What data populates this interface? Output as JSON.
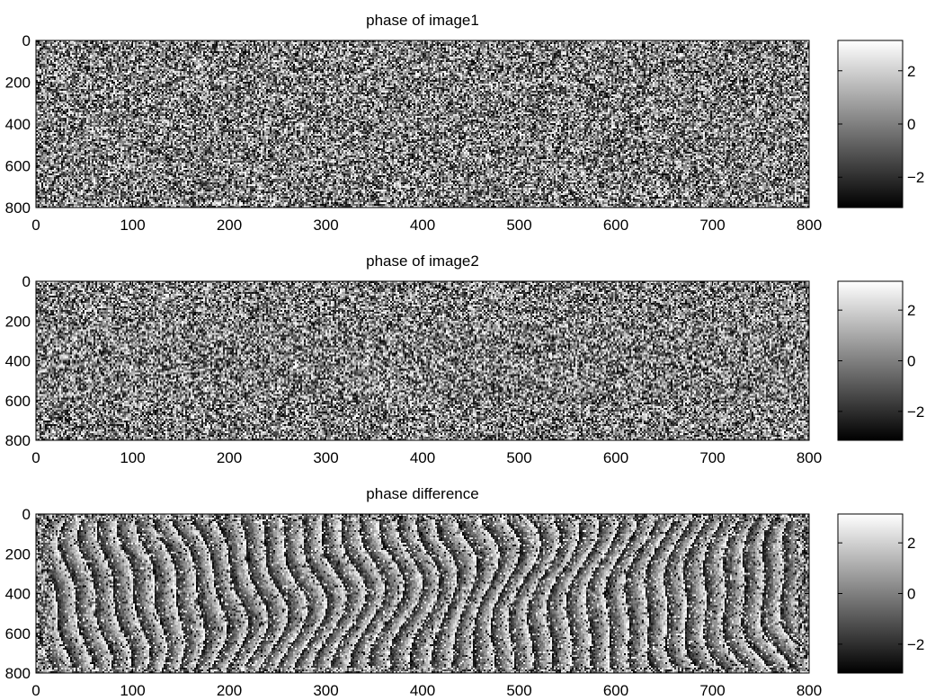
{
  "chart_data": [
    {
      "type": "heatmap",
      "title": "phase of image1",
      "pattern": "noise",
      "colormap": "gray",
      "xlim": [
        0,
        800
      ],
      "ylim": [
        0,
        800
      ],
      "y_reversed": true,
      "xticks": [
        0,
        100,
        200,
        300,
        400,
        500,
        600,
        700,
        800
      ],
      "yticks": [
        0,
        200,
        400,
        600,
        800
      ],
      "xticklabels": [
        "0",
        "100",
        "200",
        "300",
        "400",
        "500",
        "600",
        "700",
        "800"
      ],
      "yticklabels": [
        "0",
        "200",
        "400",
        "600",
        "800"
      ],
      "colorbar": {
        "range": [
          -3.14,
          3.14
        ],
        "ticks": [
          2,
          0,
          -2
        ],
        "ticklabels": [
          "2",
          "0",
          "−2"
        ]
      }
    },
    {
      "type": "heatmap",
      "title": "phase of image2",
      "pattern": "noise",
      "colormap": "gray",
      "xlim": [
        0,
        800
      ],
      "ylim": [
        0,
        800
      ],
      "y_reversed": true,
      "xticks": [
        0,
        100,
        200,
        300,
        400,
        500,
        600,
        700,
        800
      ],
      "yticks": [
        0,
        200,
        400,
        600,
        800
      ],
      "xticklabels": [
        "0",
        "100",
        "200",
        "300",
        "400",
        "500",
        "600",
        "700",
        "800"
      ],
      "yticklabels": [
        "0",
        "200",
        "400",
        "600",
        "800"
      ],
      "colorbar": {
        "range": [
          -3.14,
          3.14
        ],
        "ticks": [
          2,
          0,
          -2
        ],
        "ticklabels": [
          "2",
          "0",
          "−2"
        ]
      }
    },
    {
      "type": "heatmap",
      "title": "phase difference",
      "pattern": "fringes",
      "colormap": "gray",
      "xlim": [
        0,
        800
      ],
      "ylim": [
        0,
        800
      ],
      "y_reversed": true,
      "xticks": [
        0,
        100,
        200,
        300,
        400,
        500,
        600,
        700,
        800
      ],
      "yticks": [
        0,
        200,
        400,
        600,
        800
      ],
      "xticklabels": [
        "0",
        "100",
        "200",
        "300",
        "400",
        "500",
        "600",
        "700",
        "800"
      ],
      "yticklabels": [
        "0",
        "200",
        "400",
        "600",
        "800"
      ],
      "colorbar": {
        "range": [
          -3.14,
          3.14
        ],
        "ticks": [
          2,
          0,
          -2
        ],
        "ticklabels": [
          "2",
          "0",
          "−2"
        ]
      }
    }
  ]
}
